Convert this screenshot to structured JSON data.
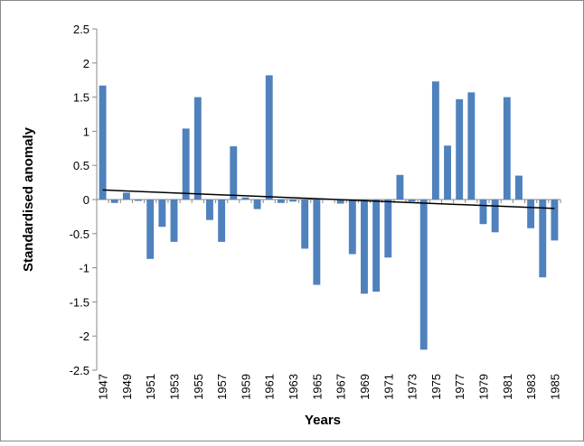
{
  "chart_data": {
    "type": "bar",
    "x_label": "Years",
    "y_label": "Standardised anomaly",
    "categories": [
      "1947",
      null,
      "1949",
      null,
      "1951",
      null,
      "1953",
      null,
      "1955",
      null,
      "1957",
      null,
      "1959",
      null,
      "1961",
      null,
      "1963",
      null,
      "1965",
      null,
      "1967",
      null,
      "1969",
      null,
      "1971",
      null,
      "1973",
      null,
      "1975",
      null,
      "1977",
      null,
      "1979",
      null,
      "1981",
      null,
      "1983",
      null,
      "1985"
    ],
    "values": [
      1.67,
      -0.05,
      0.1,
      -0.02,
      -0.87,
      -0.4,
      -0.62,
      1.04,
      1.5,
      -0.3,
      -0.62,
      0.78,
      0.03,
      -0.14,
      1.82,
      -0.05,
      -0.03,
      -0.72,
      -1.25,
      0,
      -0.06,
      -0.8,
      -1.38,
      -1.35,
      -0.85,
      0.36,
      -0.03,
      -2.2,
      1.73,
      0.79,
      1.47,
      1.57,
      -0.36,
      -0.48,
      1.5,
      0.35,
      -0.42,
      -1.14,
      -0.6
    ],
    "color": "#4f81bd",
    "trend": [
      0.14,
      -0.13
    ],
    "trend_color": "#000000",
    "ylim": [
      -2.5,
      2.5
    ],
    "yticks": [
      {
        "value": -2.5,
        "label": "-2.5"
      },
      -2,
      {
        "value": -1.5,
        "label": "-1.5"
      },
      -1,
      {
        "value": -0.5,
        "label": "-0.5"
      },
      0,
      0.5,
      1,
      1.5,
      2,
      2.5
    ]
  }
}
